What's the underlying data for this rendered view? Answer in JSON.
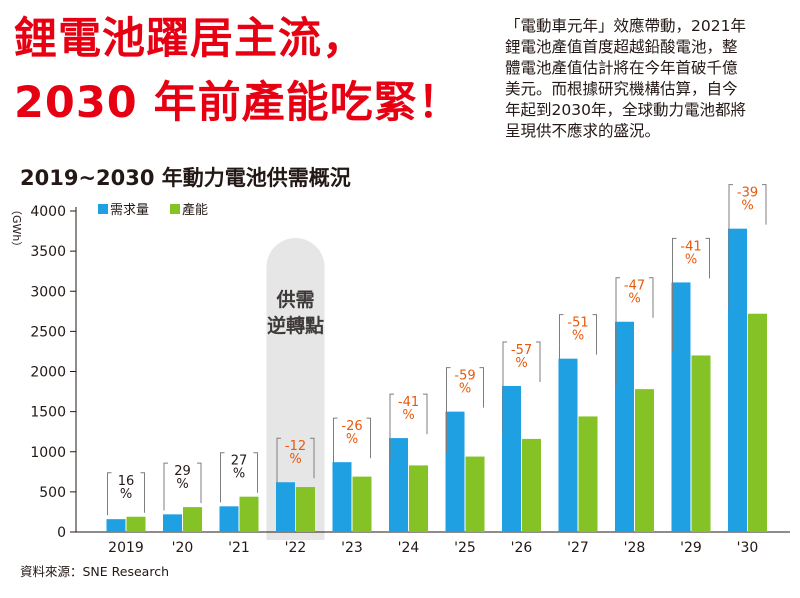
{
  "headline": {
    "line1": "鋰電池躍居主流，",
    "line2": "2030 年前產能吃緊！"
  },
  "intro": {
    "lines": [
      "「電動車元年」效應帶動，2021年",
      "鋰電池產值首度超越鉛酸電池，整",
      "體電池產值估計將在今年首破千億",
      "美元。而根據研究機構估算，自今",
      "年起到2030年，全球動力電池都將",
      "呈現供不應求的盛況。"
    ]
  },
  "chart_title": "2019~2030 年動力電池供需概況",
  "source": "資料來源：SNE Research",
  "colors": {
    "headline": "#e60012",
    "demand": "#1ea0e3",
    "capacity": "#84c225",
    "gap_label": "#e8590c",
    "neutral_label": "#231815",
    "highlight_band": "#e6e6e6"
  },
  "chart_data": {
    "type": "bar",
    "title": "2019~2030 年動力電池供需概況",
    "unit_label": "（GWh）",
    "categories": [
      "2019",
      "'20",
      "'21",
      "'22",
      "'23",
      "'24",
      "'25",
      "'26",
      "'27",
      "'28",
      "'29",
      "'30"
    ],
    "series": [
      {
        "name": "需求量",
        "color": "#1ea0e3",
        "values": [
          160,
          220,
          320,
          620,
          870,
          1170,
          1500,
          1820,
          2160,
          2620,
          3110,
          3780
        ]
      },
      {
        "name": "產能",
        "color": "#84c225",
        "values": [
          190,
          310,
          440,
          560,
          690,
          830,
          940,
          1160,
          1440,
          1780,
          2200,
          2720
        ]
      }
    ],
    "gap_labels": [
      "16\n%",
      "29\n%",
      "27\n%",
      "-12\n%",
      "-26\n%",
      "-41\n%",
      "-59\n%",
      "-57\n%",
      "-51\n%",
      "-47\n%",
      "-41\n%",
      "-39\n%"
    ],
    "y_ticks": [
      0,
      500,
      1000,
      1500,
      2000,
      2500,
      3000,
      3500,
      4000
    ],
    "ylim": [
      0,
      4000
    ],
    "grid": false,
    "legend_position": "top-left",
    "annotation": {
      "category": "'22",
      "text": "供需\n逆轉點"
    }
  }
}
